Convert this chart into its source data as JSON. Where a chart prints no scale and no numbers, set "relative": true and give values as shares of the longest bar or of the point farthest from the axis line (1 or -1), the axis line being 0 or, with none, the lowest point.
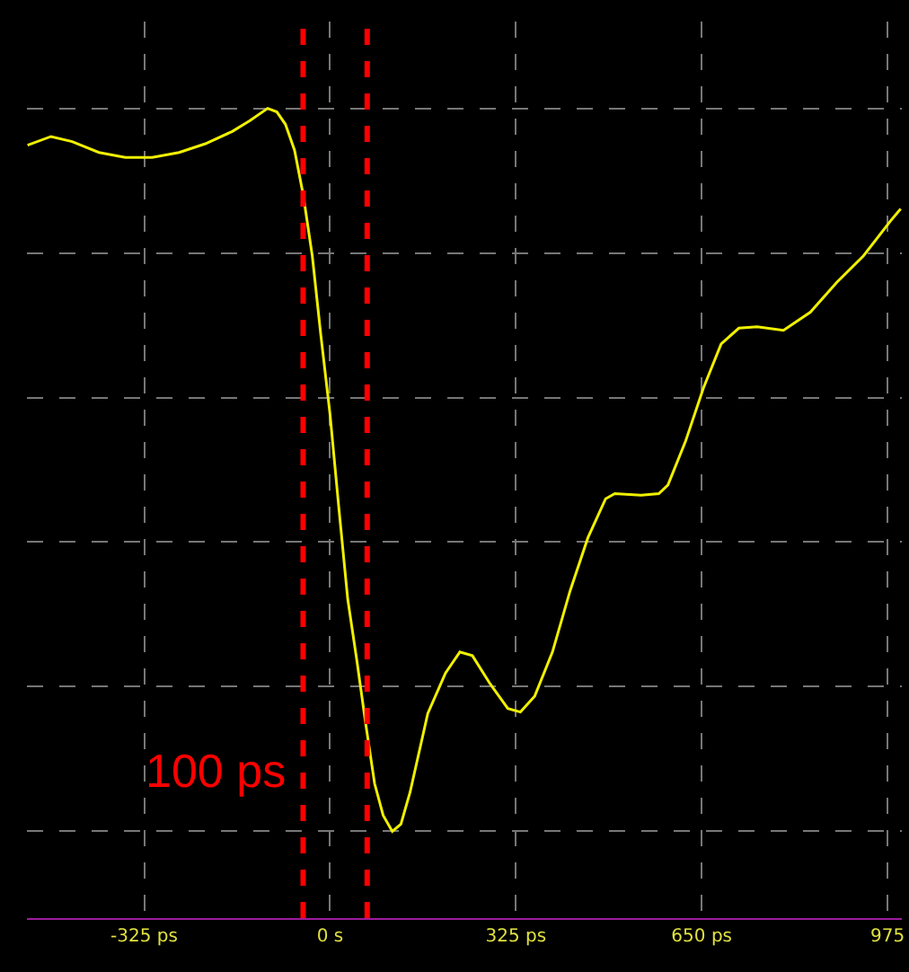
{
  "chart_data": {
    "type": "line",
    "relative": true,
    "x": [
      -529,
      -488,
      -451,
      -404,
      -358,
      -311,
      -264,
      -218,
      -171,
      -140,
      -109,
      -93,
      -78,
      -62,
      -47,
      -31,
      -16,
      0,
      16,
      31,
      47,
      62,
      78,
      93,
      109,
      124,
      140,
      171,
      202,
      227,
      249,
      280,
      311,
      333,
      358,
      389,
      420,
      451,
      482,
      498,
      544,
      575,
      591,
      622,
      653,
      684,
      715,
      747,
      793,
      840,
      886,
      933,
      980,
      998
    ],
    "series": [
      {
        "color": "#f0f000",
        "values": [
          0.949,
          0.961,
          0.954,
          0.939,
          0.932,
          0.932,
          0.939,
          0.951,
          0.968,
          0.983,
          1.0,
          0.995,
          0.978,
          0.942,
          0.881,
          0.796,
          0.686,
          0.577,
          0.443,
          0.321,
          0.236,
          0.151,
          0.066,
          0.022,
          0,
          0.01,
          0.054,
          0.163,
          0.219,
          0.248,
          0.243,
          0.204,
          0.17,
          0.165,
          0.187,
          0.248,
          0.333,
          0.406,
          0.46,
          0.467,
          0.465,
          0.467,
          0.479,
          0.54,
          0.613,
          0.674,
          0.696,
          0.698,
          0.693,
          0.718,
          0.759,
          0.796,
          0.844,
          0.861
        ]
      }
    ],
    "xlim": [
      -530,
      1000
    ],
    "xticks": [
      {
        "value": -325,
        "label": "-325 ps"
      },
      {
        "value": 0,
        "label": "0 s"
      },
      {
        "value": 325,
        "label": "325 ps"
      },
      {
        "value": 650,
        "label": "650 ps"
      },
      {
        "value": 975,
        "label": "975"
      }
    ],
    "ref_lines": [
      {
        "axis": "x",
        "value": -47,
        "color": "#ff0000",
        "line_style": "dashed"
      },
      {
        "axis": "x",
        "value": 65,
        "color": "#ff0000",
        "line_style": "dashed"
      }
    ],
    "annotations": [
      "100 ps"
    ],
    "grid": true,
    "marker": "none",
    "line_style": "solid"
  }
}
